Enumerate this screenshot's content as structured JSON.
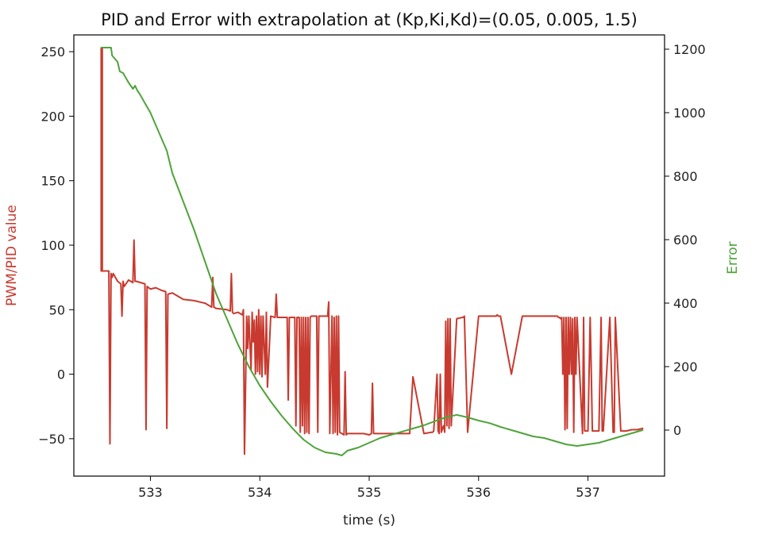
{
  "chart_data": {
    "type": "line",
    "title": "PID and Error with extrapolation at (Kp,Ki,Kd)=(0.05, 0.005, 1.5)",
    "xlabel": "time (s)",
    "ylabel_left": "PWM/PID value",
    "ylabel_right": "Error",
    "xlim": [
      532.3,
      537.7
    ],
    "ylim_left": [
      -79,
      263
    ],
    "ylim_right": [
      -145,
      1245
    ],
    "x_ticks": [
      533,
      534,
      535,
      536,
      537
    ],
    "x_tick_labels": [
      "533",
      "534",
      "535",
      "536",
      "537"
    ],
    "y_left_ticks": [
      -50,
      0,
      50,
      100,
      150,
      200,
      250
    ],
    "y_left_tick_labels": [
      "−50",
      "0",
      "50",
      "100",
      "150",
      "200",
      "250"
    ],
    "y_right_ticks": [
      0,
      200,
      400,
      600,
      800,
      1000,
      1200
    ],
    "y_right_tick_labels": [
      "0",
      "200",
      "400",
      "600",
      "800",
      "1000",
      "1200"
    ],
    "grid": false,
    "legend": "none",
    "colors": {
      "pwm_pid": "#c83a2f",
      "error": "#4ea33a",
      "left_label": "#c83a2f",
      "right_label": "#4ea33a"
    },
    "series": [
      {
        "axis": "left",
        "color": "#c83a2f",
        "x": [
          532.55,
          532.55,
          532.56,
          532.56,
          532.62,
          532.63,
          532.64,
          532.65,
          532.66,
          532.7,
          532.73,
          532.74,
          532.75,
          532.76,
          532.8,
          532.84,
          532.85,
          532.86,
          532.87,
          532.95,
          532.96,
          532.97,
          533.0,
          533.05,
          533.1,
          533.14,
          533.15,
          533.16,
          533.2,
          533.3,
          533.4,
          533.5,
          533.56,
          533.57,
          533.58,
          533.6,
          533.7,
          533.73,
          533.74,
          533.75,
          533.76,
          533.8,
          533.84,
          533.85,
          533.86,
          533.88,
          533.89,
          533.9,
          533.92,
          533.93,
          533.94,
          533.95,
          533.96,
          533.97,
          533.98,
          533.99,
          534.0,
          534.01,
          534.02,
          534.03,
          534.05,
          534.06,
          534.07,
          534.1,
          534.14,
          534.15,
          534.16,
          534.2,
          534.25,
          534.26,
          534.27,
          534.3,
          534.32,
          534.33,
          534.34,
          534.36,
          534.37,
          534.38,
          534.39,
          534.4,
          534.41,
          534.42,
          534.43,
          534.44,
          534.45,
          534.46,
          534.47,
          534.5,
          534.52,
          534.53,
          534.54,
          534.55,
          534.56,
          534.6,
          534.62,
          534.63,
          534.64,
          534.66,
          534.67,
          534.68,
          534.69,
          534.7,
          534.71,
          534.72,
          534.73,
          534.75,
          534.77,
          534.78,
          534.79,
          534.8,
          534.9,
          534.95,
          535.0,
          535.02,
          535.03,
          535.04,
          535.1,
          535.2,
          535.3,
          535.35,
          535.36,
          535.37,
          535.4,
          535.5,
          535.57,
          535.58,
          535.59,
          535.62,
          535.63,
          535.64,
          535.65,
          535.66,
          535.67,
          535.68,
          535.69,
          535.7,
          535.71,
          535.72,
          535.73,
          535.74,
          535.75,
          535.8,
          535.85,
          535.86,
          535.87,
          535.9,
          536.0,
          536.1,
          536.16,
          536.17,
          536.18,
          536.2,
          536.3,
          536.4,
          536.5,
          536.6,
          536.7,
          536.72,
          536.73,
          536.74,
          536.75,
          536.76,
          536.77,
          536.78,
          536.79,
          536.8,
          536.81,
          536.82,
          536.83,
          536.84,
          536.85,
          536.86,
          536.87,
          536.88,
          536.89,
          536.9,
          536.95,
          536.96,
          536.97,
          537.0,
          537.02,
          537.03,
          537.04,
          537.1,
          537.12,
          537.13,
          537.14,
          537.2,
          537.23,
          537.24,
          537.25,
          537.3,
          537.35,
          537.4,
          537.45,
          537.5
        ],
        "y": [
          80,
          253,
          253,
          80,
          80,
          -54,
          78,
          75,
          78,
          72,
          70,
          45,
          72,
          68,
          73,
          71,
          104,
          72,
          72,
          70,
          -43,
          68,
          66,
          67,
          65,
          64,
          -42,
          62,
          63,
          58,
          57,
          55,
          52,
          75,
          52,
          51,
          50,
          49,
          78,
          48,
          47,
          48,
          46,
          50,
          -62,
          45,
          20,
          45,
          3,
          48,
          25,
          42,
          0,
          45,
          2,
          50,
          0,
          45,
          -2,
          45,
          0,
          48,
          -10,
          45,
          44,
          62,
          44,
          44,
          44,
          -20,
          44,
          44,
          44,
          -40,
          44,
          44,
          -45,
          44,
          -40,
          44,
          -46,
          44,
          -45,
          44,
          -46,
          44,
          45,
          45,
          45,
          -45,
          45,
          45,
          45,
          45,
          45,
          56,
          -46,
          45,
          -46,
          44,
          -45,
          45,
          -47,
          45,
          -45,
          -46,
          -47,
          2,
          -47,
          -46,
          -46,
          -46,
          -47,
          -46,
          -7,
          -46,
          -46,
          -46,
          -46,
          -46,
          -46,
          -46,
          -2,
          -46,
          -45,
          -45,
          -44,
          0,
          -44,
          -46,
          0,
          -45,
          -42,
          -40,
          -45,
          41,
          -40,
          43,
          -42,
          43,
          -40,
          43,
          44,
          44,
          45,
          -45,
          45,
          45,
          45,
          46,
          45,
          45,
          0,
          45,
          45,
          45,
          45,
          45,
          44,
          44,
          43,
          44,
          0,
          44,
          -43,
          44,
          -42,
          44,
          0,
          44,
          0,
          43,
          -45,
          44,
          0,
          44,
          -46,
          44,
          -44,
          -44,
          44,
          3,
          -44,
          -44,
          44,
          -44,
          -44,
          44,
          -45,
          -45,
          44,
          -44,
          -44,
          -43,
          -43,
          -42
        ]
      },
      {
        "axis": "right",
        "color": "#4ea33a",
        "x": [
          532.55,
          532.64,
          532.65,
          532.7,
          532.72,
          532.75,
          532.8,
          532.84,
          532.86,
          532.88,
          532.9,
          532.95,
          533.0,
          533.05,
          533.1,
          533.15,
          533.2,
          533.3,
          533.4,
          533.5,
          533.6,
          533.7,
          533.8,
          533.9,
          534.0,
          534.1,
          534.2,
          534.3,
          534.4,
          534.5,
          534.6,
          534.7,
          534.75,
          534.8,
          534.9,
          535.0,
          535.1,
          535.2,
          535.3,
          535.4,
          535.5,
          535.6,
          535.7,
          535.8,
          535.9,
          536.0,
          536.1,
          536.2,
          536.3,
          536.4,
          536.5,
          536.6,
          536.7,
          536.8,
          536.9,
          537.0,
          537.1,
          537.2,
          537.3,
          537.4,
          537.5
        ],
        "y": [
          1205,
          1205,
          1180,
          1160,
          1130,
          1125,
          1095,
          1075,
          1085,
          1070,
          1060,
          1030,
          1000,
          960,
          920,
          880,
          810,
          720,
          630,
          530,
          430,
          350,
          270,
          200,
          140,
          90,
          45,
          5,
          -30,
          -55,
          -70,
          -75,
          -80,
          -65,
          -55,
          -40,
          -25,
          -15,
          -5,
          5,
          15,
          28,
          40,
          48,
          40,
          30,
          22,
          10,
          0,
          -10,
          -20,
          -25,
          -35,
          -45,
          -50,
          -45,
          -40,
          -30,
          -20,
          -10,
          0
        ]
      }
    ]
  }
}
